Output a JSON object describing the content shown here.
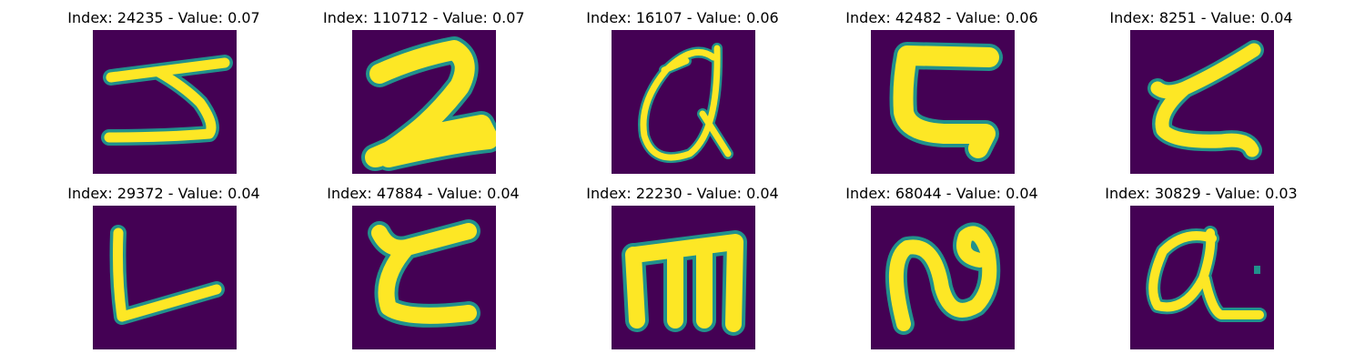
{
  "colors": {
    "background": "#440154",
    "stroke": "#fde725",
    "edge": "#21918c",
    "edge_outer": "#3b528b"
  },
  "panels": [
    {
      "index": "24235",
      "value": "0.07",
      "title": "Index: 24235 - Value: 0.07",
      "glyph": "handwritten-5-like"
    },
    {
      "index": "110712",
      "value": "0.07",
      "title": "Index: 110712 - Value: 0.07",
      "glyph": "handwritten-2-like"
    },
    {
      "index": "16107",
      "value": "0.06",
      "title": "Index: 16107 - Value: 0.06",
      "glyph": "handwritten-a-like"
    },
    {
      "index": "42482",
      "value": "0.06",
      "title": "Index: 42482 - Value: 0.06",
      "glyph": "handwritten-c-like"
    },
    {
      "index": "8251",
      "value": "0.04",
      "title": "Index: 8251 - Value: 0.04",
      "glyph": "handwritten-c-like"
    },
    {
      "index": "29372",
      "value": "0.04",
      "title": "Index: 29372 - Value: 0.04",
      "glyph": "handwritten-L-like"
    },
    {
      "index": "47884",
      "value": "0.04",
      "title": "Index: 47884 - Value: 0.04",
      "glyph": "handwritten-c-like"
    },
    {
      "index": "22230",
      "value": "0.04",
      "title": "Index: 22230 - Value: 0.04",
      "glyph": "handwritten-m-like"
    },
    {
      "index": "68044",
      "value": "0.04",
      "title": "Index: 68044 - Value: 0.04",
      "glyph": "handwritten-n-like"
    },
    {
      "index": "30829",
      "value": "0.03",
      "title": "Index: 30829 - Value: 0.03",
      "glyph": "handwritten-a-like"
    }
  ]
}
